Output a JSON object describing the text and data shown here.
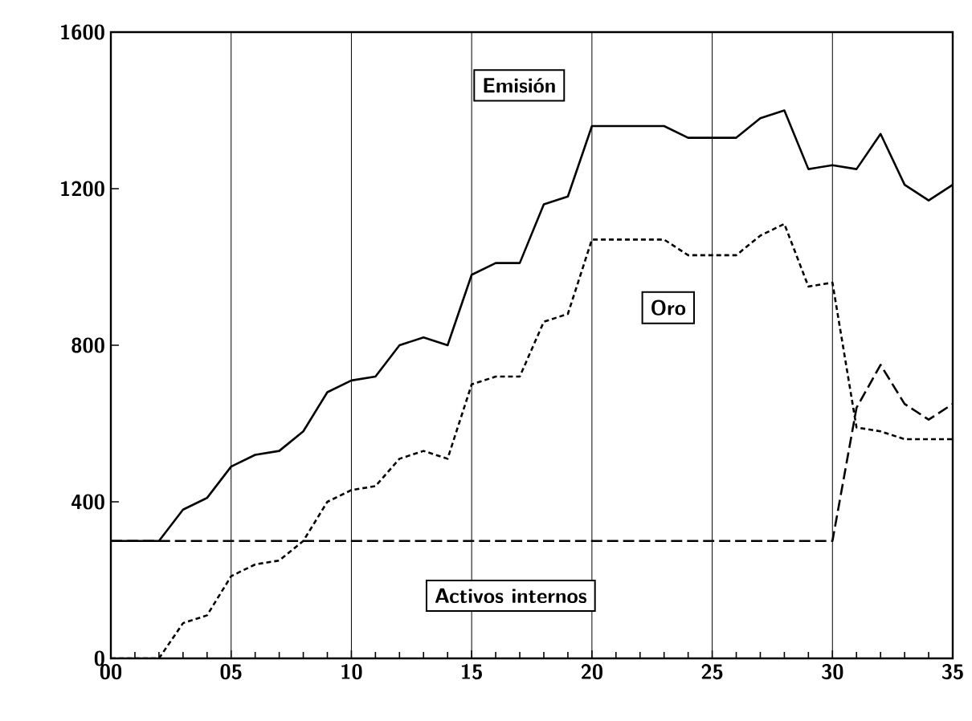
{
  "chart_data": {
    "type": "line",
    "x": [
      0,
      1,
      2,
      3,
      4,
      5,
      6,
      7,
      8,
      9,
      10,
      11,
      12,
      13,
      14,
      15,
      16,
      17,
      18,
      19,
      20,
      21,
      22,
      23,
      24,
      25,
      26,
      27,
      28,
      29,
      30,
      31,
      32,
      33,
      34,
      35
    ],
    "series": [
      {
        "name": "Emisión",
        "color": "#000000",
        "line_style": "solid",
        "values": [
          300,
          300,
          300,
          380,
          410,
          490,
          520,
          530,
          580,
          680,
          710,
          720,
          800,
          820,
          800,
          980,
          1010,
          1010,
          1160,
          1180,
          1360,
          1360,
          1360,
          1360,
          1330,
          1330,
          1330,
          1380,
          1400,
          1250,
          1260,
          1250,
          1340,
          1210,
          1170,
          1210
        ]
      },
      {
        "name": "Oro",
        "color": "#000000",
        "line_style": "dashed",
        "values": [
          0,
          0,
          0,
          90,
          110,
          210,
          240,
          250,
          300,
          400,
          430,
          440,
          510,
          530,
          510,
          700,
          720,
          720,
          860,
          880,
          1070,
          1070,
          1070,
          1070,
          1030,
          1030,
          1030,
          1080,
          1110,
          950,
          960,
          590,
          580,
          560,
          560,
          560
        ]
      },
      {
        "name": "Activos internos",
        "color": "#000000",
        "line_style": "dashed",
        "values": [
          300,
          300,
          300,
          300,
          300,
          300,
          300,
          300,
          300,
          300,
          300,
          300,
          300,
          300,
          300,
          300,
          300,
          300,
          300,
          300,
          300,
          300,
          300,
          300,
          300,
          300,
          300,
          300,
          300,
          300,
          300,
          640,
          750,
          650,
          610,
          650
        ]
      }
    ],
    "xlim": [
      0,
      35
    ],
    "ylim": [
      0,
      1600
    ],
    "xticks": [
      {
        "value": 0,
        "label": "00"
      },
      {
        "value": 5,
        "label": "05"
      },
      10,
      15,
      20,
      25,
      30,
      35
    ],
    "yticks": [
      0,
      400,
      800,
      1200,
      1600
    ],
    "grid": "x",
    "legend": false,
    "marker": "none"
  }
}
